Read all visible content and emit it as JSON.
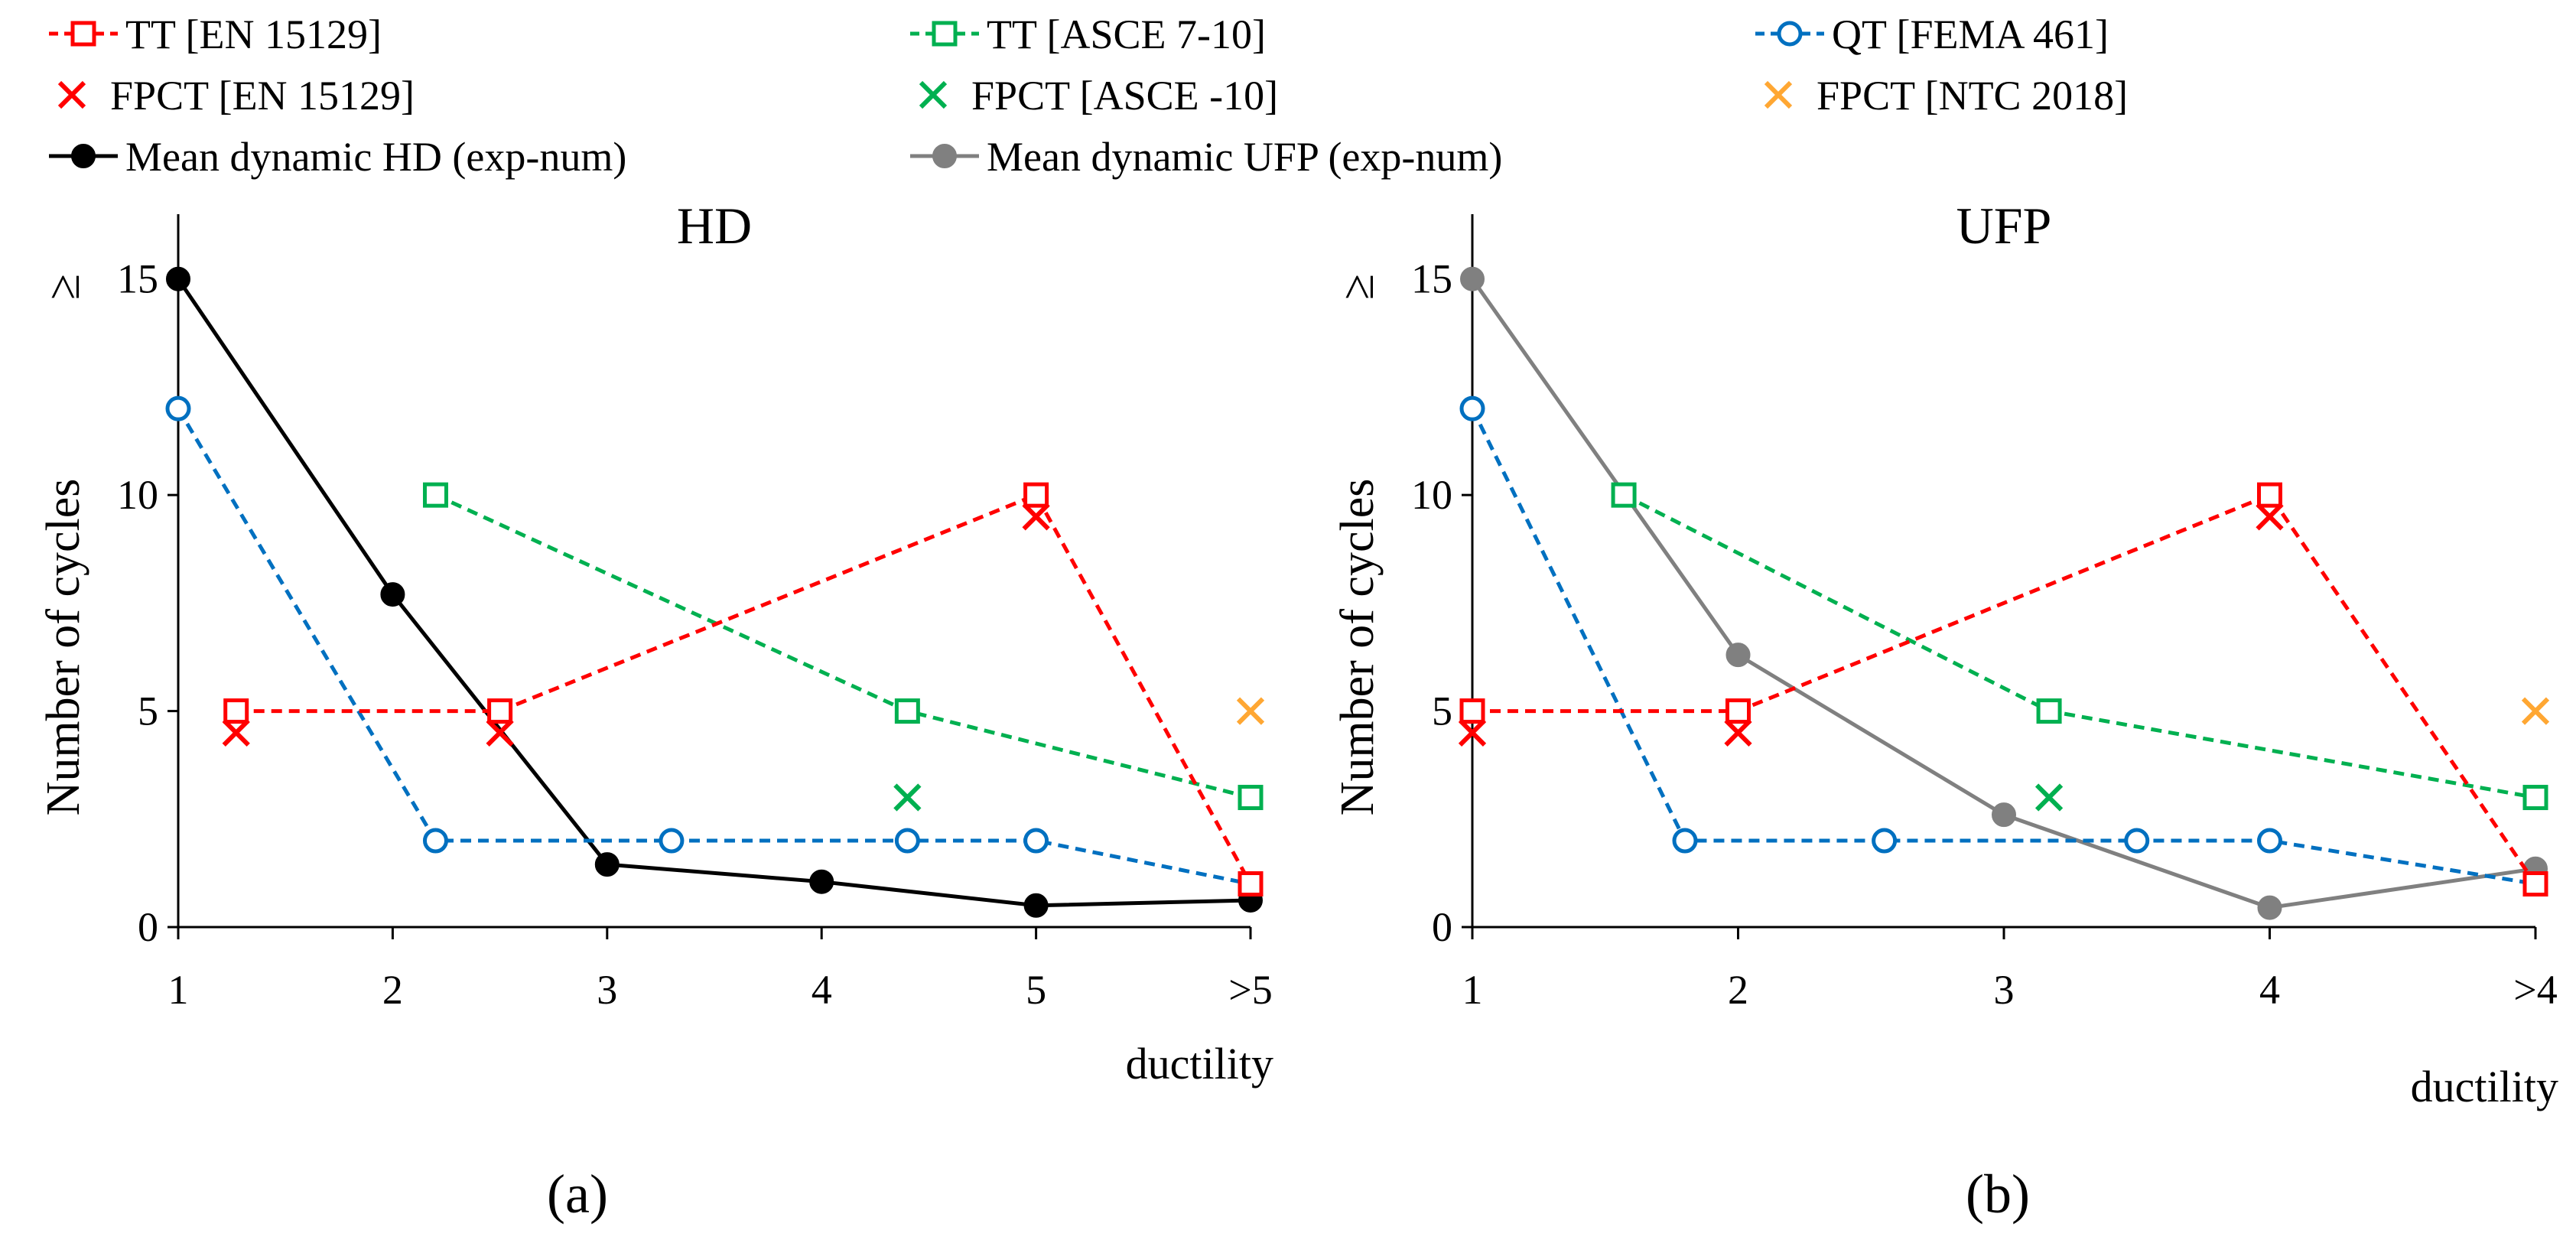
{
  "legend": [
    {
      "id": "tt_en",
      "label": "TT [EN 15129]",
      "color": "#ff0000",
      "marker": "square-open",
      "line": "dashed"
    },
    {
      "id": "tt_asce",
      "label": "TT [ASCE 7-10]",
      "color": "#00b050",
      "marker": "square-open",
      "line": "dashed"
    },
    {
      "id": "qt_fema",
      "label": "QT [FEMA 461]",
      "color": "#0070c0",
      "marker": "circle-open",
      "line": "dashed"
    },
    {
      "id": "fpct_en",
      "label": "FPCT [EN 15129]",
      "color": "#ff0000",
      "marker": "x",
      "line": "none"
    },
    {
      "id": "fpct_asce",
      "label": "FPCT [ASCE -10]",
      "color": "#00b050",
      "marker": "x",
      "line": "none"
    },
    {
      "id": "fpct_ntc",
      "label": "FPCT [NTC 2018]",
      "color": "#ffa733",
      "marker": "x",
      "line": "none"
    },
    {
      "id": "mean_hd",
      "label": "Mean dynamic HD (exp-num)",
      "color": "#000000",
      "marker": "circle-filled",
      "line": "solid"
    },
    {
      "id": "mean_ufp",
      "label": "Mean dynamic UFP (exp-num)",
      "color": "#808080",
      "marker": "circle-filled",
      "line": "solid"
    }
  ],
  "chart_data": [
    {
      "type": "line",
      "panel": "a",
      "caption": "(a)",
      "title": "HD",
      "xlabel": "ductility",
      "ylabel": "Number of cycles",
      "ylabel_symbol": "≥",
      "xlim": [
        1,
        6
      ],
      "ylim": [
        0,
        16.5
      ],
      "yticks": [
        0,
        5,
        10,
        15
      ],
      "xticks": [
        {
          "x": 1,
          "label": "1"
        },
        {
          "x": 2,
          "label": "2"
        },
        {
          "x": 3,
          "label": "3"
        },
        {
          "x": 4,
          "label": "4"
        },
        {
          "x": 5,
          "label": "5"
        },
        {
          "x": 6,
          "label": ">5"
        }
      ],
      "series": [
        {
          "ref": "tt_en",
          "points": [
            [
              1.27,
              5
            ],
            [
              2.5,
              5
            ],
            [
              5,
              10
            ],
            [
              6,
              1
            ]
          ]
        },
        {
          "ref": "tt_asce",
          "points": [
            [
              2.2,
              10
            ],
            [
              4.4,
              5
            ],
            [
              6,
              3
            ]
          ]
        },
        {
          "ref": "qt_fema",
          "points": [
            [
              1,
              12
            ],
            [
              2.2,
              2
            ],
            [
              3.3,
              2
            ],
            [
              4.4,
              2
            ],
            [
              5,
              2
            ],
            [
              6,
              1
            ]
          ]
        },
        {
          "ref": "fpct_en",
          "points": [
            [
              1.27,
              4.5
            ],
            [
              2.5,
              4.5
            ],
            [
              5,
              9.5
            ]
          ]
        },
        {
          "ref": "fpct_asce",
          "points": [
            [
              4.4,
              3
            ]
          ]
        },
        {
          "ref": "fpct_ntc",
          "points": [
            [
              6,
              5
            ]
          ]
        },
        {
          "ref": "mean_hd",
          "points": [
            [
              1,
              15
            ],
            [
              2,
              7.7
            ],
            [
              3,
              1.45
            ],
            [
              4,
              1.05
            ],
            [
              5,
              0.5
            ],
            [
              6,
              0.62
            ]
          ]
        }
      ]
    },
    {
      "type": "line",
      "panel": "b",
      "caption": "(b)",
      "title": "UFP",
      "xlabel": "ductility",
      "ylabel": "Number of cycles",
      "ylabel_symbol": "≥",
      "xlim": [
        1,
        5
      ],
      "ylim": [
        0,
        16.5
      ],
      "yticks": [
        0,
        5,
        10,
        15
      ],
      "xticks": [
        {
          "x": 1,
          "label": "1"
        },
        {
          "x": 2,
          "label": "2"
        },
        {
          "x": 3,
          "label": "3"
        },
        {
          "x": 4,
          "label": "4"
        },
        {
          "x": 5,
          "label": ">4"
        }
      ],
      "series": [
        {
          "ref": "tt_en",
          "points": [
            [
              1,
              5
            ],
            [
              2,
              5
            ],
            [
              4,
              10
            ],
            [
              5,
              1
            ]
          ]
        },
        {
          "ref": "tt_asce",
          "points": [
            [
              1.57,
              10
            ],
            [
              3.17,
              5
            ],
            [
              5,
              3
            ]
          ]
        },
        {
          "ref": "qt_fema",
          "points": [
            [
              1,
              12
            ],
            [
              1.8,
              2
            ],
            [
              2.55,
              2
            ],
            [
              3.5,
              2
            ],
            [
              4,
              2
            ],
            [
              5,
              1
            ]
          ]
        },
        {
          "ref": "fpct_en",
          "points": [
            [
              1,
              4.5
            ],
            [
              2,
              4.5
            ],
            [
              4,
              9.5
            ]
          ]
        },
        {
          "ref": "fpct_asce",
          "points": [
            [
              3.17,
              3
            ]
          ]
        },
        {
          "ref": "fpct_ntc",
          "points": [
            [
              5,
              5
            ]
          ]
        },
        {
          "ref": "mean_ufp",
          "points": [
            [
              1,
              15
            ],
            [
              2,
              6.3
            ],
            [
              3,
              2.6
            ],
            [
              4,
              0.45
            ],
            [
              5,
              1.35
            ]
          ]
        }
      ]
    }
  ]
}
